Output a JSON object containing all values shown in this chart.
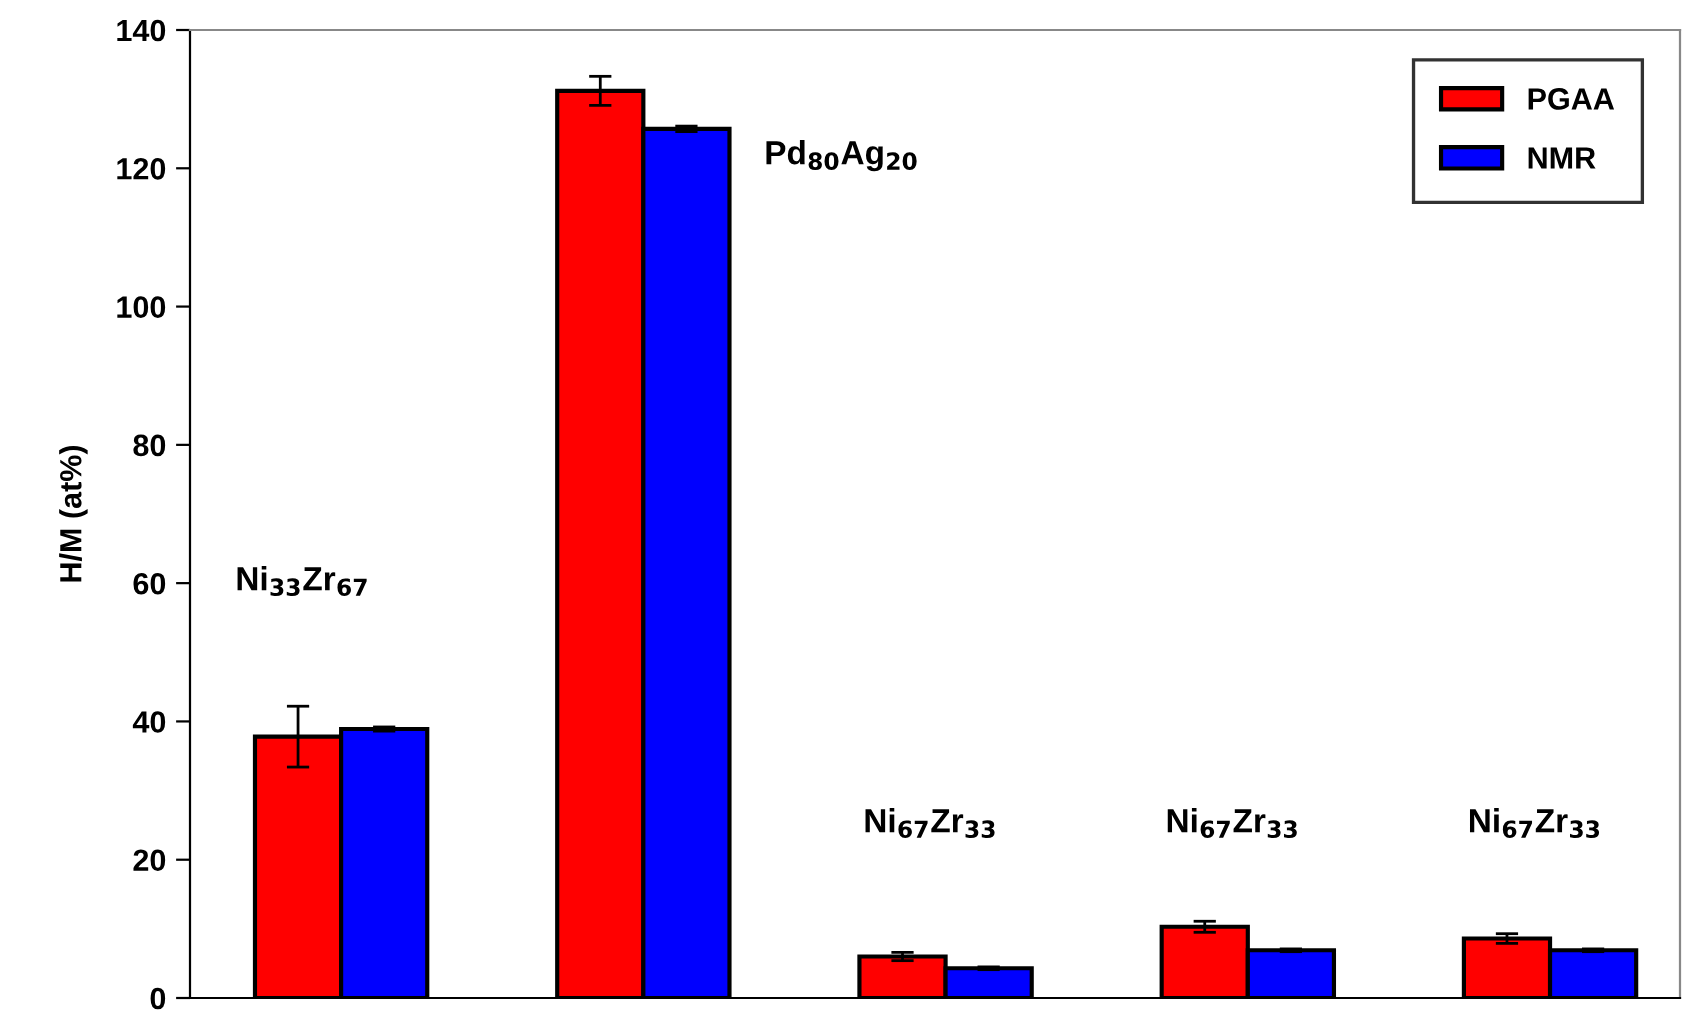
{
  "chart_data": {
    "type": "bar",
    "ylabel": "H/M (at%)",
    "categories": [
      null,
      null,
      null,
      null,
      null
    ],
    "series": [
      {
        "name": "PGAA",
        "color": "#ff0000",
        "values": [
          37.8,
          131.2,
          6.0,
          10.3,
          8.6
        ],
        "errors": [
          4.4,
          2.1,
          0.6,
          0.8,
          0.7
        ]
      },
      {
        "name": "NMR",
        "color": "#0000ff",
        "values": [
          38.9,
          125.7,
          4.3,
          6.9,
          6.9
        ],
        "errors": [
          0.3,
          0.4,
          0.2,
          0.2,
          0.2
        ]
      }
    ],
    "ylim": [
      0,
      140
    ],
    "yticks": [
      0,
      20,
      40,
      60,
      80,
      100,
      120,
      140
    ],
    "grid": false,
    "legend": "top right",
    "annotations": [
      "Ni$_{33}$Zr$_{67}$",
      "Pd$_{80}$Ag$_{20}$",
      "Ni$_{67}$Zr$_{33}$",
      "Ni$_{67}$Zr$_{33}$",
      "Ni$_{67}$Zr$_{33}$"
    ]
  }
}
